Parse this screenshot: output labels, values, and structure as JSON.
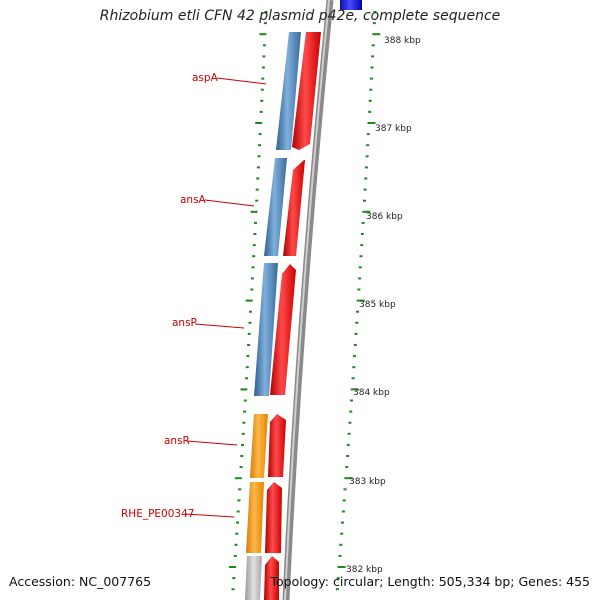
{
  "title": "Rhizobium etli CFN 42 plasmid p42e, complete sequence",
  "footer": {
    "accession": "Accession: NC_007765",
    "topology": "Topology: circular; Length: 505,334 bp; Genes: 455"
  },
  "colors": {
    "label_red": "#cc0000",
    "tick_green": "#1a8a1a",
    "gene_blue": "#4a7fb5",
    "gene_red": "#ee1111",
    "gene_orange": "#f59a18",
    "gene_gray": "#bdbdbd",
    "backbone": "#8a8a8a",
    "top_blue": "#1a1acc"
  },
  "scale_labels": [
    "388 kbp",
    "387 kbp",
    "386 kbp",
    "385 kbp",
    "384 kbp",
    "383 kbp",
    "382 kbp"
  ],
  "gene_labels": [
    "aspA",
    "ansA",
    "ansP",
    "ansR",
    "RHE_PE00347"
  ]
}
